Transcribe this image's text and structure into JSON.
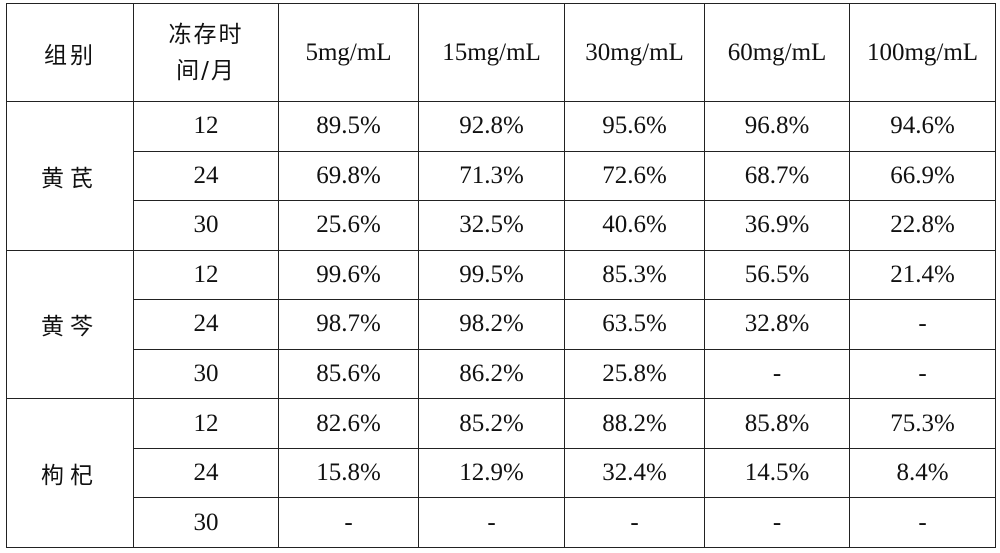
{
  "table": {
    "header": {
      "group": "组别",
      "time_line1": "冻存时",
      "time_line2": "间/月",
      "concentrations": [
        "5mg/mL",
        "15mg/mL",
        "30mg/mL",
        "60mg/mL",
        "100mg/mL"
      ]
    },
    "groups": [
      {
        "name": "黄芪",
        "rows": [
          {
            "month": "12",
            "values": [
              "89.5%",
              "92.8%",
              "95.6%",
              "96.8%",
              "94.6%"
            ]
          },
          {
            "month": "24",
            "values": [
              "69.8%",
              "71.3%",
              "72.6%",
              "68.7%",
              "66.9%"
            ]
          },
          {
            "month": "30",
            "values": [
              "25.6%",
              "32.5%",
              "40.6%",
              "36.9%",
              "22.8%"
            ]
          }
        ]
      },
      {
        "name": "黄芩",
        "rows": [
          {
            "month": "12",
            "values": [
              "99.6%",
              "99.5%",
              "85.3%",
              "56.5%",
              "21.4%"
            ]
          },
          {
            "month": "24",
            "values": [
              "98.7%",
              "98.2%",
              "63.5%",
              "32.8%",
              "-"
            ]
          },
          {
            "month": "30",
            "values": [
              "85.6%",
              "86.2%",
              "25.8%",
              "-",
              "-"
            ]
          }
        ]
      },
      {
        "name": "枸杞",
        "rows": [
          {
            "month": "12",
            "values": [
              "82.6%",
              "85.2%",
              "88.2%",
              "85.8%",
              "75.3%"
            ]
          },
          {
            "month": "24",
            "values": [
              "15.8%",
              "12.9%",
              "32.4%",
              "14.5%",
              "8.4%"
            ]
          },
          {
            "month": "30",
            "values": [
              "-",
              "-",
              "-",
              "-",
              "-"
            ]
          }
        ]
      }
    ]
  }
}
